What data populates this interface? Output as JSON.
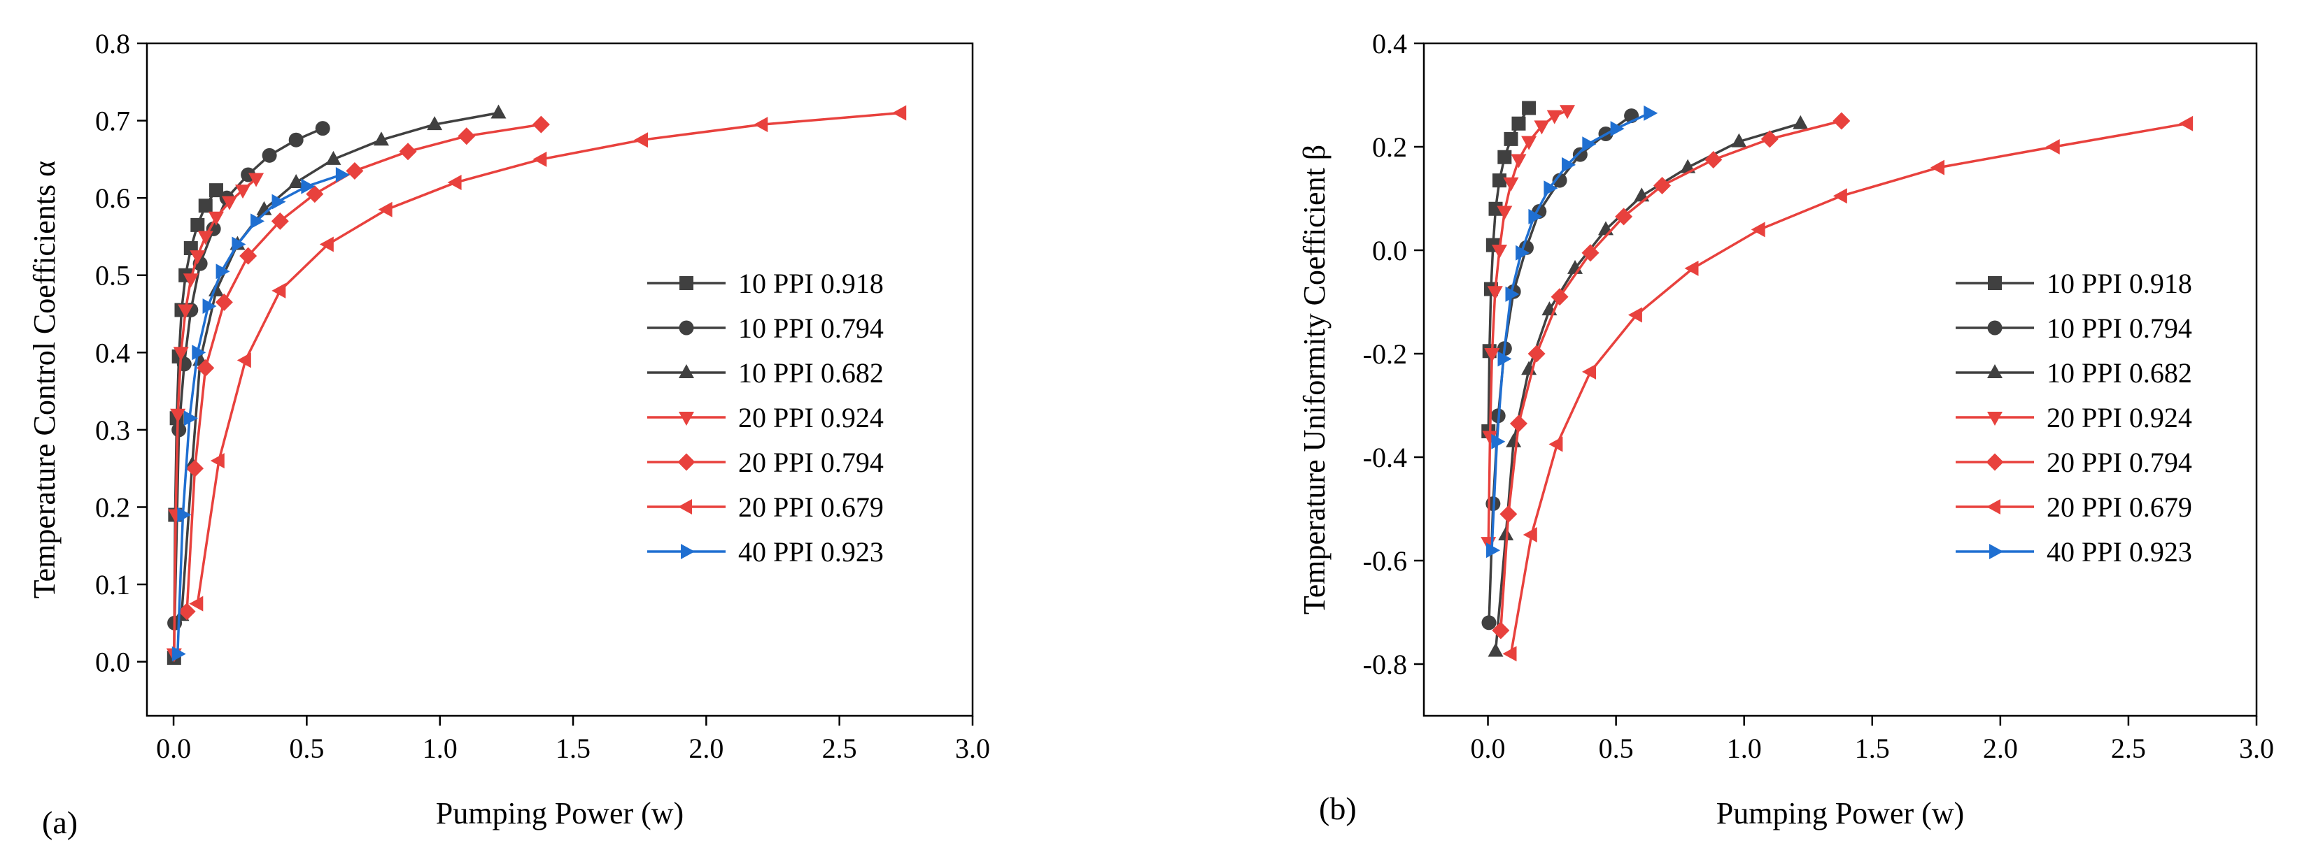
{
  "chart_data": [
    {
      "type": "line",
      "panel_label": "(a)",
      "xlabel": "Pumping Power (w)",
      "ylabel": "Temperature Control Coefficients α",
      "xlim": [
        -0.1,
        3.0
      ],
      "ylim": [
        -0.07,
        0.8
      ],
      "xticks": [
        "0.0",
        "0.5",
        "1.0",
        "1.5",
        "2.0",
        "2.5",
        "3.0"
      ],
      "yticks": [
        "0.0",
        "0.1",
        "0.2",
        "0.3",
        "0.4",
        "0.5",
        "0.6",
        "0.7",
        "0.8"
      ],
      "legend_position": "center-right",
      "series": [
        {
          "name": "10 PPI 0.918",
          "color": "#404040",
          "marker": "square",
          "x": [
            0.002,
            0.006,
            0.012,
            0.02,
            0.03,
            0.045,
            0.065,
            0.09,
            0.12,
            0.16
          ],
          "y": [
            0.005,
            0.19,
            0.315,
            0.395,
            0.455,
            0.5,
            0.535,
            0.565,
            0.59,
            0.61
          ]
        },
        {
          "name": "10 PPI 0.794",
          "color": "#404040",
          "marker": "circle",
          "x": [
            0.004,
            0.02,
            0.04,
            0.065,
            0.1,
            0.15,
            0.2,
            0.28,
            0.36,
            0.46,
            0.56
          ],
          "y": [
            0.05,
            0.3,
            0.385,
            0.455,
            0.515,
            0.56,
            0.6,
            0.63,
            0.655,
            0.675,
            0.69
          ]
        },
        {
          "name": "10 PPI 0.682",
          "color": "#404040",
          "marker": "triangle-up",
          "x": [
            0.03,
            0.07,
            0.1,
            0.16,
            0.24,
            0.34,
            0.46,
            0.6,
            0.78,
            0.98,
            1.22
          ],
          "y": [
            0.06,
            0.255,
            0.39,
            0.48,
            0.54,
            0.585,
            0.62,
            0.65,
            0.675,
            0.695,
            0.71
          ]
        },
        {
          "name": "20 PPI 0.924",
          "color": "#e8413d",
          "marker": "triangle-down",
          "x": [
            0.002,
            0.008,
            0.016,
            0.028,
            0.045,
            0.065,
            0.09,
            0.12,
            0.16,
            0.21,
            0.26,
            0.31
          ],
          "y": [
            0.01,
            0.19,
            0.32,
            0.4,
            0.455,
            0.495,
            0.525,
            0.55,
            0.575,
            0.595,
            0.61,
            0.625
          ]
        },
        {
          "name": "20 PPI 0.794",
          "color": "#e8413d",
          "marker": "diamond",
          "x": [
            0.05,
            0.08,
            0.12,
            0.19,
            0.28,
            0.4,
            0.53,
            0.68,
            0.88,
            1.1,
            1.38
          ],
          "y": [
            0.065,
            0.25,
            0.38,
            0.465,
            0.525,
            0.57,
            0.605,
            0.635,
            0.66,
            0.68,
            0.695
          ]
        },
        {
          "name": "20 PPI 0.679",
          "color": "#e8413d",
          "marker": "triangle-left",
          "x": [
            0.09,
            0.17,
            0.27,
            0.4,
            0.58,
            0.8,
            1.06,
            1.38,
            1.76,
            2.21,
            2.73
          ],
          "y": [
            0.075,
            0.26,
            0.39,
            0.48,
            0.54,
            0.585,
            0.62,
            0.65,
            0.675,
            0.695,
            0.71
          ]
        },
        {
          "name": "40 PPI 0.923",
          "color": "#1f6fd1",
          "marker": "triangle-right",
          "x": [
            0.015,
            0.035,
            0.06,
            0.09,
            0.13,
            0.18,
            0.24,
            0.31,
            0.39,
            0.5,
            0.63
          ],
          "y": [
            0.01,
            0.19,
            0.315,
            0.4,
            0.46,
            0.505,
            0.54,
            0.57,
            0.595,
            0.615,
            0.63
          ]
        }
      ]
    },
    {
      "type": "line",
      "panel_label": "(b)",
      "xlabel": "Pumping Power (w)",
      "ylabel": "Temperature Uniformity Coefficient β",
      "xlim": [
        -0.25,
        3.0
      ],
      "ylim": [
        -0.9,
        0.4
      ],
      "xticks": [
        "0.0",
        "0.5",
        "1.0",
        "1.5",
        "2.0",
        "2.5",
        "3.0"
      ],
      "yticks": [
        "-0.8",
        "-0.6",
        "-0.4",
        "-0.2",
        "0.0",
        "0.2",
        "0.4"
      ],
      "legend_position": "center-right",
      "series": [
        {
          "name": "10 PPI 0.918",
          "color": "#404040",
          "marker": "square",
          "x": [
            0.002,
            0.006,
            0.012,
            0.02,
            0.03,
            0.045,
            0.065,
            0.09,
            0.12,
            0.16
          ],
          "y": [
            -0.35,
            -0.195,
            -0.075,
            0.01,
            0.08,
            0.135,
            0.18,
            0.215,
            0.245,
            0.275
          ]
        },
        {
          "name": "10 PPI 0.794",
          "color": "#404040",
          "marker": "circle",
          "x": [
            0.004,
            0.02,
            0.04,
            0.065,
            0.1,
            0.15,
            0.2,
            0.28,
            0.36,
            0.46,
            0.56
          ],
          "y": [
            -0.72,
            -0.49,
            -0.32,
            -0.19,
            -0.08,
            0.005,
            0.075,
            0.135,
            0.185,
            0.225,
            0.26
          ]
        },
        {
          "name": "10 PPI 0.682",
          "color": "#404040",
          "marker": "triangle-up",
          "x": [
            0.03,
            0.07,
            0.1,
            0.16,
            0.24,
            0.34,
            0.46,
            0.6,
            0.78,
            0.98,
            1.22
          ],
          "y": [
            -0.775,
            -0.55,
            -0.37,
            -0.23,
            -0.115,
            -0.035,
            0.04,
            0.105,
            0.16,
            0.21,
            0.245
          ]
        },
        {
          "name": "20 PPI 0.924",
          "color": "#e8413d",
          "marker": "triangle-down",
          "x": [
            0.002,
            0.008,
            0.016,
            0.028,
            0.045,
            0.065,
            0.09,
            0.12,
            0.16,
            0.21,
            0.26,
            0.31
          ],
          "y": [
            -0.565,
            -0.36,
            -0.2,
            -0.08,
            0.0,
            0.075,
            0.13,
            0.175,
            0.21,
            0.24,
            0.26,
            0.27
          ]
        },
        {
          "name": "20 PPI 0.794",
          "color": "#e8413d",
          "marker": "diamond",
          "x": [
            0.05,
            0.08,
            0.12,
            0.19,
            0.28,
            0.4,
            0.53,
            0.68,
            0.88,
            1.1,
            1.38
          ],
          "y": [
            -0.735,
            -0.51,
            -0.335,
            -0.2,
            -0.09,
            -0.005,
            0.065,
            0.125,
            0.175,
            0.215,
            0.25
          ]
        },
        {
          "name": "20 PPI 0.679",
          "color": "#e8413d",
          "marker": "triangle-left",
          "x": [
            0.09,
            0.17,
            0.27,
            0.4,
            0.58,
            0.8,
            1.06,
            1.38,
            1.76,
            2.21,
            2.73
          ],
          "y": [
            -0.78,
            -0.55,
            -0.375,
            -0.235,
            -0.125,
            -0.035,
            0.04,
            0.105,
            0.16,
            0.2,
            0.245
          ]
        },
        {
          "name": "40 PPI 0.923",
          "color": "#1f6fd1",
          "marker": "triangle-right",
          "x": [
            0.015,
            0.035,
            0.06,
            0.09,
            0.13,
            0.18,
            0.24,
            0.31,
            0.39,
            0.5,
            0.63
          ],
          "y": [
            -0.58,
            -0.37,
            -0.21,
            -0.085,
            -0.005,
            0.065,
            0.12,
            0.165,
            0.205,
            0.235,
            0.265
          ]
        }
      ]
    }
  ]
}
